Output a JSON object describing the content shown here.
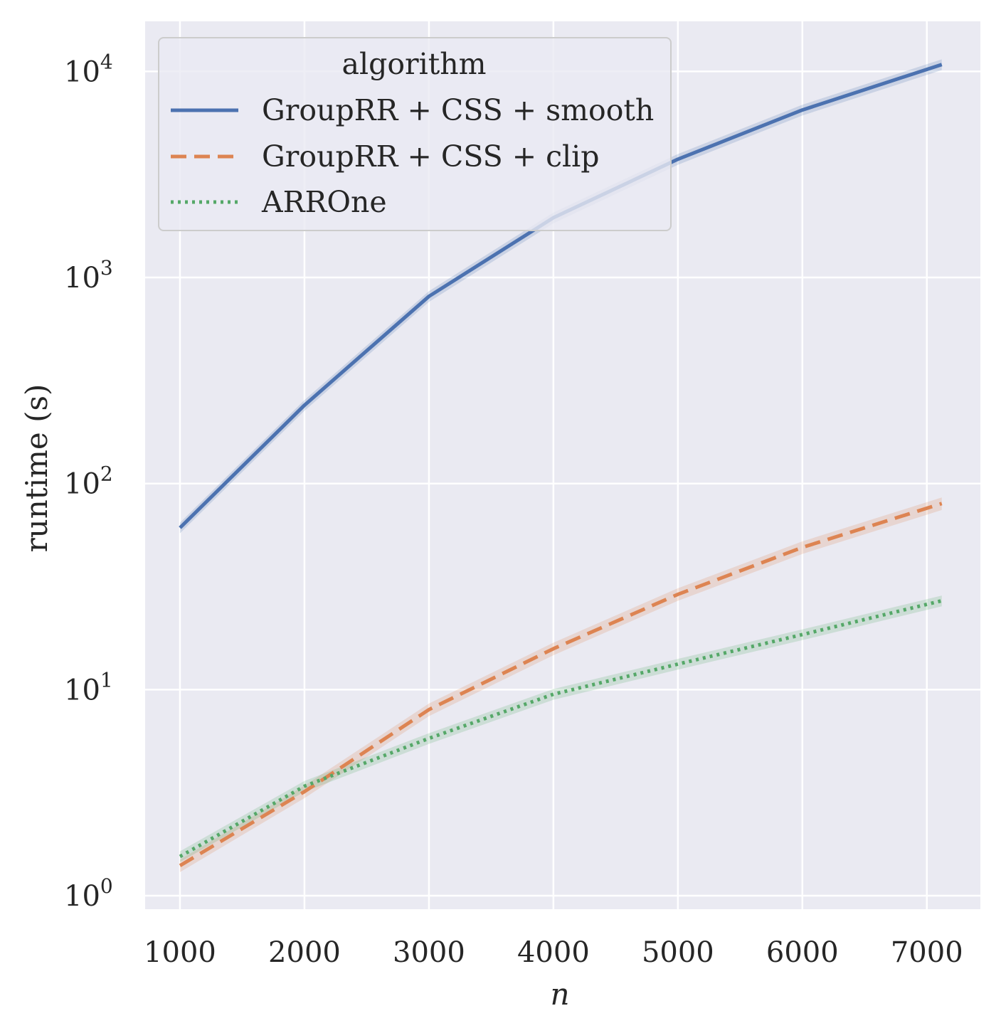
{
  "chart_data": {
    "type": "line",
    "title": "",
    "xlabel": "n",
    "ylabel": "runtime (s)",
    "yscale": "log",
    "xlim": [
      720,
      7430
    ],
    "ylim": [
      0.86,
      17500
    ],
    "grid": true,
    "x_ticks": [
      1000,
      2000,
      3000,
      4000,
      5000,
      6000,
      7000
    ],
    "x_tick_labels": [
      "1000",
      "2000",
      "3000",
      "4000",
      "5000",
      "6000",
      "7000"
    ],
    "y_ticks": [
      1,
      10,
      100,
      1000,
      10000
    ],
    "y_tick_labels": [
      {
        "base": "10",
        "exp": "0"
      },
      {
        "base": "10",
        "exp": "1"
      },
      {
        "base": "10",
        "exp": "2"
      },
      {
        "base": "10",
        "exp": "3"
      },
      {
        "base": "10",
        "exp": "4"
      }
    ],
    "legend": {
      "title": "algorithm",
      "position": "top-left"
    },
    "x": [
      1000,
      2000,
      3000,
      4000,
      5000,
      6000,
      7120
    ],
    "series": [
      {
        "name": "GroupRR + CSS + smooth",
        "color": "#4c72b0",
        "style": "solid",
        "values": [
          61,
          240,
          810,
          1950,
          3750,
          6500,
          10800
        ],
        "band": 0.06
      },
      {
        "name": "GroupRR + CSS + clip",
        "color": "#dd8452",
        "style": "dashed",
        "values": [
          1.4,
          3.2,
          8.0,
          15.8,
          29.0,
          49.0,
          80.0
        ],
        "band": 0.07
      },
      {
        "name": "ARROne",
        "color": "#55a868",
        "style": "dotted",
        "values": [
          1.55,
          3.4,
          5.8,
          9.5,
          13.3,
          18.5,
          27.0
        ],
        "band": 0.06
      }
    ]
  }
}
